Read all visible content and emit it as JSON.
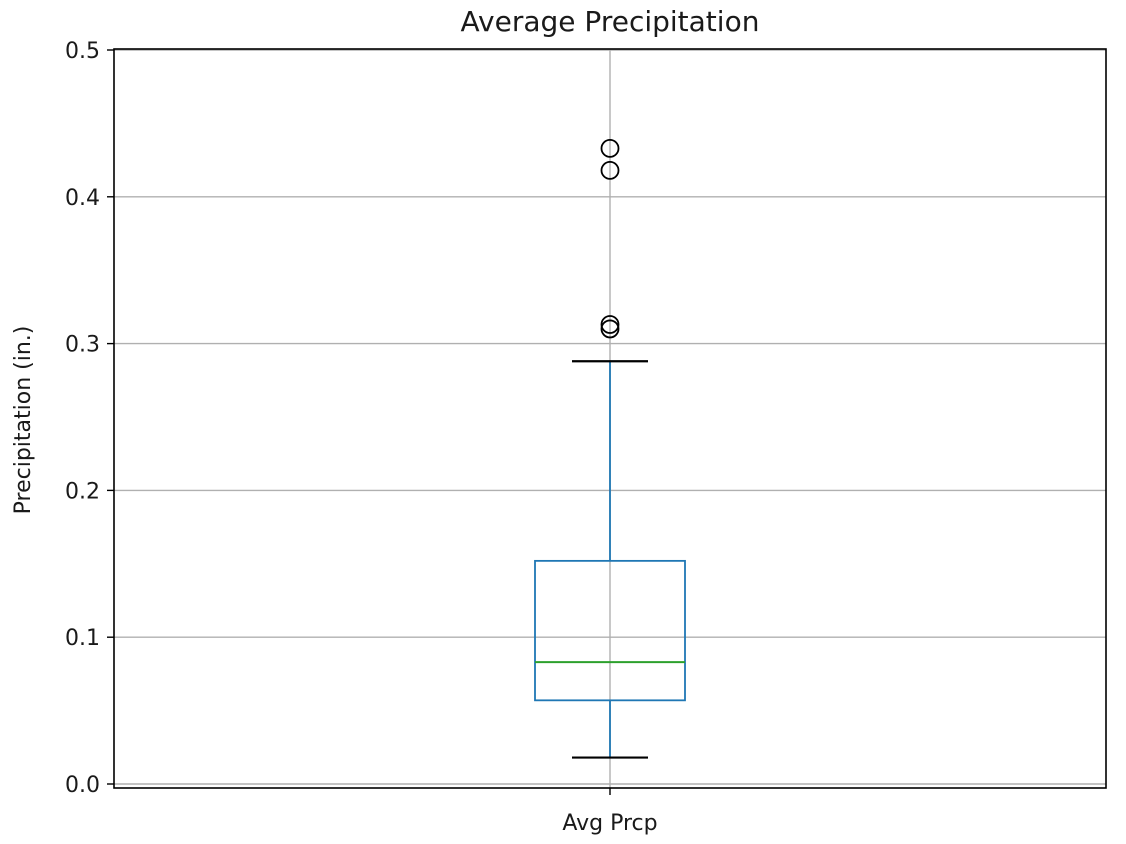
{
  "chart_data": {
    "type": "box",
    "title": "Average Precipitation",
    "xlabel": "",
    "ylabel": "Precipitation (in.)",
    "ylim": [
      0.0,
      0.5
    ],
    "yticks": [
      0.0,
      0.1,
      0.2,
      0.3,
      0.4,
      0.5
    ],
    "ytick_labels": [
      "0.0",
      "0.1",
      "0.2",
      "0.3",
      "0.4",
      "0.5"
    ],
    "grid": true,
    "categories": [
      "Avg Prcp"
    ],
    "boxes": [
      {
        "category": "Avg Prcp",
        "whisker_low": 0.018,
        "q1": 0.057,
        "median": 0.083,
        "q3": 0.152,
        "whisker_high": 0.288,
        "outliers": [
          0.31,
          0.313,
          0.418,
          0.433
        ]
      }
    ],
    "colors": {
      "box": "#1f77b4",
      "median": "#2ca02c",
      "whisker_cap": "#000000",
      "outlier": "#000000",
      "grid": "#b0b0b0"
    }
  }
}
